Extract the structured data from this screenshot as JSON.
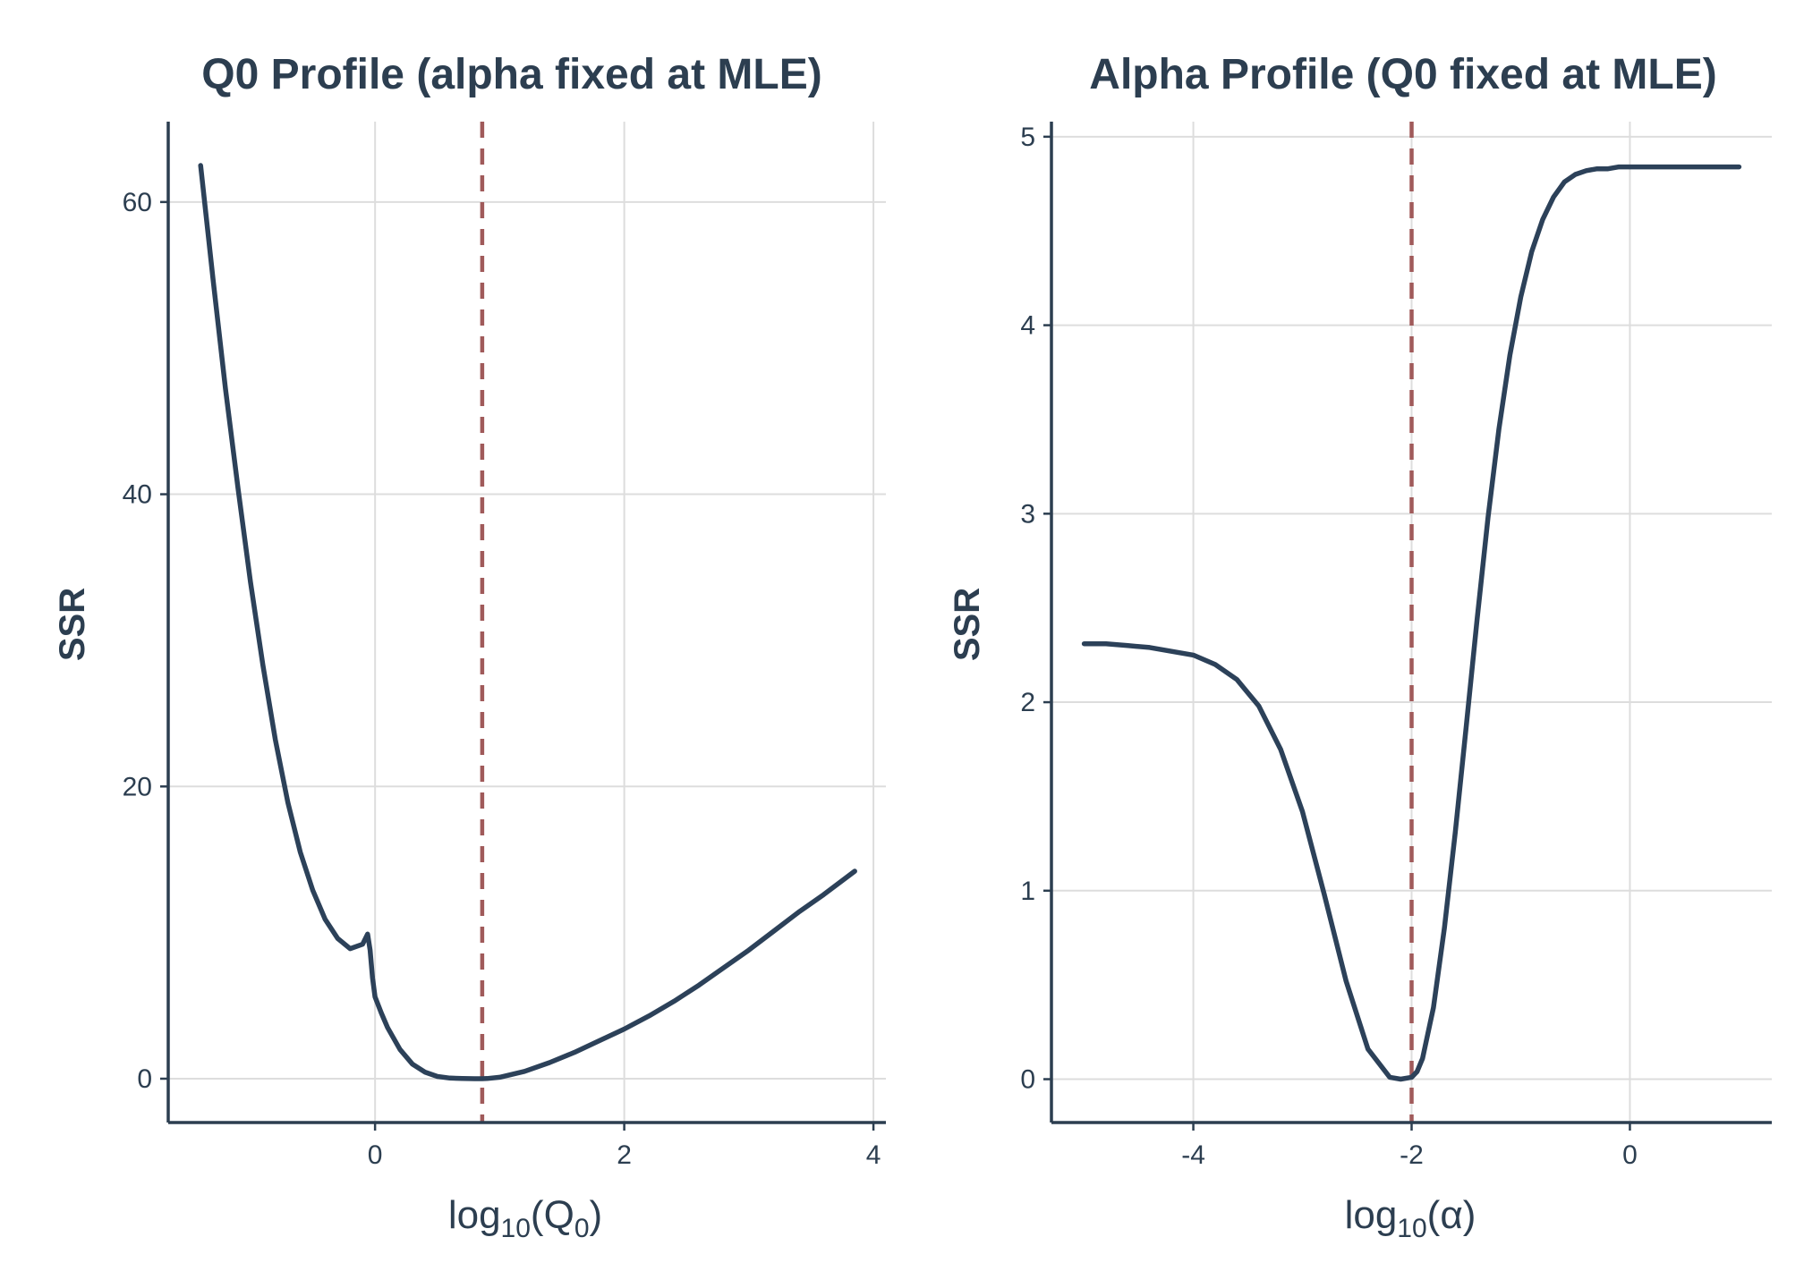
{
  "chart_data": [
    {
      "type": "line",
      "title": "Q0 Profile (alpha fixed at MLE)",
      "xlabel": {
        "base": "log",
        "sub1": "10",
        "open": "(Q",
        "sub2": "0",
        "close": ")"
      },
      "ylabel": "SSR",
      "xlim": [
        -1.66,
        4.1
      ],
      "ylim": [
        -3,
        65.5
      ],
      "x_ticks": [
        0,
        2,
        4
      ],
      "y_ticks": [
        0,
        20,
        40,
        60
      ],
      "grid": true,
      "reference_line": {
        "x": 0.86,
        "style": "dashed",
        "color": "#a05a5a"
      },
      "line_color": "#2c4159",
      "series": [
        {
          "x": [
            -1.4,
            -1.3,
            -1.2,
            -1.1,
            -1.0,
            -0.9,
            -0.8,
            -0.7,
            -0.6,
            -0.5,
            -0.4,
            -0.3,
            -0.2,
            -0.1,
            -0.06,
            -0.04,
            -0.02,
            0.0,
            0.05,
            0.1,
            0.2,
            0.3,
            0.4,
            0.5,
            0.6,
            0.7,
            0.8,
            0.86,
            0.9,
            1.0,
            1.2,
            1.4,
            1.6,
            1.8,
            2.0,
            2.2,
            2.4,
            2.6,
            2.8,
            3.0,
            3.2,
            3.4,
            3.6,
            3.85
          ],
          "y": [
            62.5,
            54.7,
            47.2,
            40.4,
            34.0,
            28.3,
            23.2,
            18.9,
            15.5,
            12.9,
            10.9,
            9.6,
            8.9,
            9.2,
            9.9,
            8.8,
            6.9,
            5.6,
            4.5,
            3.5,
            2.0,
            1.0,
            0.45,
            0.15,
            0.04,
            0.01,
            0.0,
            0.0,
            0.01,
            0.1,
            0.5,
            1.1,
            1.8,
            2.6,
            3.4,
            4.3,
            5.3,
            6.4,
            7.6,
            8.8,
            10.1,
            11.4,
            12.6,
            14.2
          ]
        }
      ]
    },
    {
      "type": "line",
      "title": "Alpha Profile (Q0 fixed at MLE)",
      "xlabel": {
        "base": "log",
        "sub1": "10",
        "open": "(",
        "symbol": "α",
        "close": ")"
      },
      "ylabel": "SSR",
      "xlim": [
        -5.3,
        1.3
      ],
      "ylim": [
        -0.23,
        5.08
      ],
      "x_ticks": [
        -4,
        -2,
        0
      ],
      "y_ticks": [
        0,
        1,
        2,
        3,
        4,
        5
      ],
      "grid": true,
      "reference_line": {
        "x": -2.0,
        "style": "dashed",
        "color": "#a05a5a"
      },
      "line_color": "#2c4159",
      "series": [
        {
          "x": [
            -5.0,
            -4.8,
            -4.6,
            -4.4,
            -4.2,
            -4.0,
            -3.8,
            -3.6,
            -3.4,
            -3.2,
            -3.0,
            -2.8,
            -2.6,
            -2.4,
            -2.2,
            -2.1,
            -2.0,
            -1.95,
            -1.9,
            -1.8,
            -1.7,
            -1.6,
            -1.5,
            -1.4,
            -1.3,
            -1.2,
            -1.1,
            -1.0,
            -0.9,
            -0.8,
            -0.7,
            -0.6,
            -0.5,
            -0.4,
            -0.3,
            -0.2,
            -0.1,
            0.0,
            0.2,
            0.5,
            1.0
          ],
          "y": [
            2.31,
            2.31,
            2.3,
            2.29,
            2.27,
            2.25,
            2.2,
            2.12,
            1.98,
            1.75,
            1.42,
            0.98,
            0.52,
            0.16,
            0.01,
            0.0,
            0.01,
            0.04,
            0.11,
            0.38,
            0.8,
            1.31,
            1.87,
            2.44,
            2.98,
            3.45,
            3.84,
            4.15,
            4.39,
            4.56,
            4.68,
            4.76,
            4.8,
            4.82,
            4.83,
            4.83,
            4.84,
            4.84,
            4.84,
            4.84,
            4.84
          ]
        }
      ]
    }
  ]
}
